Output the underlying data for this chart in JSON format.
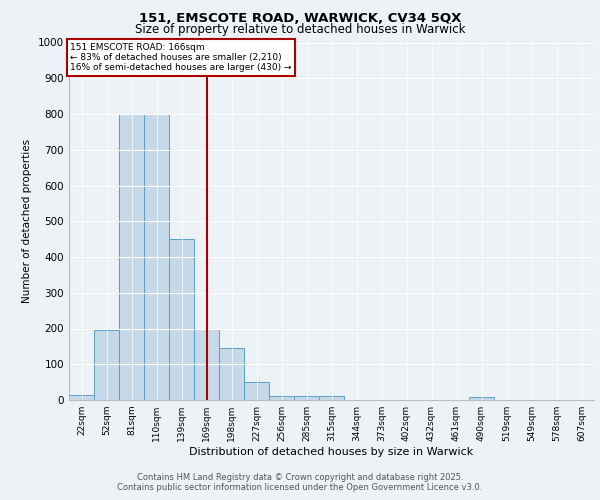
{
  "title1": "151, EMSCOTE ROAD, WARWICK, CV34 5QX",
  "title2": "Size of property relative to detached houses in Warwick",
  "xlabel": "Distribution of detached houses by size in Warwick",
  "ylabel": "Number of detached properties",
  "bar_labels": [
    "22sqm",
    "52sqm",
    "81sqm",
    "110sqm",
    "139sqm",
    "169sqm",
    "198sqm",
    "227sqm",
    "256sqm",
    "285sqm",
    "315sqm",
    "344sqm",
    "373sqm",
    "402sqm",
    "432sqm",
    "461sqm",
    "490sqm",
    "519sqm",
    "549sqm",
    "578sqm",
    "607sqm"
  ],
  "bar_values": [
    15,
    195,
    800,
    800,
    450,
    200,
    145,
    50,
    12,
    10,
    10,
    0,
    0,
    0,
    0,
    0,
    8,
    0,
    0,
    0,
    0
  ],
  "bar_color": "#c6d9e8",
  "bar_edge_color": "#5a9ec9",
  "property_line_x": 5.0,
  "property_line_color": "#aa0000",
  "annotation_line1": "151 EMSCOTE ROAD: 166sqm",
  "annotation_line2": "← 83% of detached houses are smaller (2,210)",
  "annotation_line3": "16% of semi-detached houses are larger (430) →",
  "annotation_box_color": "#aa0000",
  "ylim": [
    0,
    1000
  ],
  "yticks": [
    0,
    100,
    200,
    300,
    400,
    500,
    600,
    700,
    800,
    900,
    1000
  ],
  "footnote1": "Contains HM Land Registry data © Crown copyright and database right 2025.",
  "footnote2": "Contains public sector information licensed under the Open Government Licence v3.0.",
  "bg_color": "#edf2f7",
  "plot_bg_color": "#edf2f7"
}
